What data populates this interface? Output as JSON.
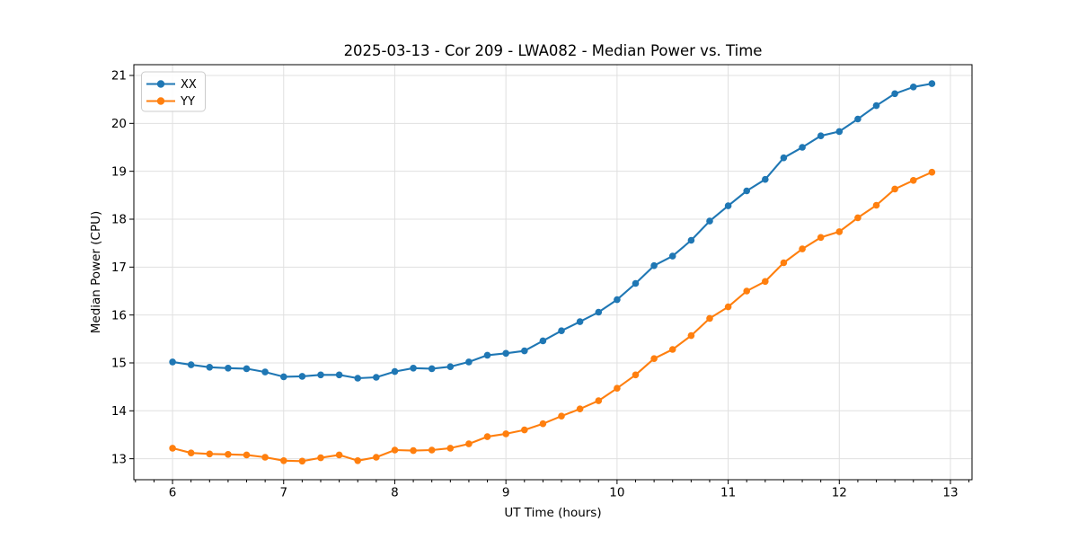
{
  "chart_data": {
    "type": "line",
    "title": "2025-03-13 - Cor 209 - LWA082 - Median Power vs. Time",
    "xlabel": "UT Time (hours)",
    "ylabel": "Median Power (CPU)",
    "xlim": [
      5.652,
      13.194
    ],
    "ylim": [
      12.562,
      21.225
    ],
    "x_ticks": [
      6,
      7,
      8,
      9,
      10,
      11,
      12,
      13
    ],
    "y_ticks": [
      13,
      14,
      15,
      16,
      17,
      18,
      19,
      20,
      21
    ],
    "x_minor_step_hours": 0.166667,
    "grid": true,
    "legend_position": "upper-left",
    "x": [
      6.0,
      6.1667,
      6.3333,
      6.5,
      6.6667,
      6.8333,
      7.0,
      7.1667,
      7.3333,
      7.5,
      7.6667,
      7.8333,
      8.0,
      8.1667,
      8.3333,
      8.5,
      8.6667,
      8.8333,
      9.0,
      9.1667,
      9.3333,
      9.5,
      9.6667,
      9.8333,
      10.0,
      10.1667,
      10.3333,
      10.5,
      10.6667,
      10.8333,
      11.0,
      11.1667,
      11.3333,
      11.5,
      11.6667,
      11.8333,
      12.0,
      12.1667,
      12.3333,
      12.5,
      12.6667,
      12.8333
    ],
    "series": [
      {
        "name": "XX",
        "color": "#1f77b4",
        "values": [
          15.02,
          14.96,
          14.91,
          14.89,
          14.88,
          14.81,
          14.71,
          14.72,
          14.75,
          14.75,
          14.68,
          14.7,
          14.82,
          14.89,
          14.88,
          14.92,
          15.02,
          15.16,
          15.2,
          15.25,
          15.46,
          15.67,
          15.86,
          16.06,
          16.32,
          16.66,
          17.03,
          17.23,
          17.56,
          17.96,
          18.28,
          18.59,
          18.83,
          19.28,
          19.5,
          19.74,
          19.83,
          20.09,
          20.37,
          20.62,
          20.76,
          20.83
        ]
      },
      {
        "name": "YY",
        "color": "#ff7f0e",
        "values": [
          13.22,
          13.12,
          13.1,
          13.09,
          13.08,
          13.03,
          12.96,
          12.95,
          13.02,
          13.08,
          12.96,
          13.03,
          13.18,
          13.17,
          13.18,
          13.22,
          13.31,
          13.46,
          13.52,
          13.6,
          13.73,
          13.89,
          14.04,
          14.21,
          14.47,
          14.75,
          15.09,
          15.28,
          15.57,
          15.93,
          16.17,
          16.5,
          16.7,
          17.09,
          17.38,
          17.62,
          17.74,
          18.03,
          18.29,
          18.63,
          18.81,
          18.98
        ]
      }
    ],
    "style": {
      "grid_color": "#e0e0e0",
      "spine_color": "#000000",
      "tick_label_color": "#000000",
      "plot_background": "#ffffff",
      "legend_border": "#cccccc"
    }
  }
}
